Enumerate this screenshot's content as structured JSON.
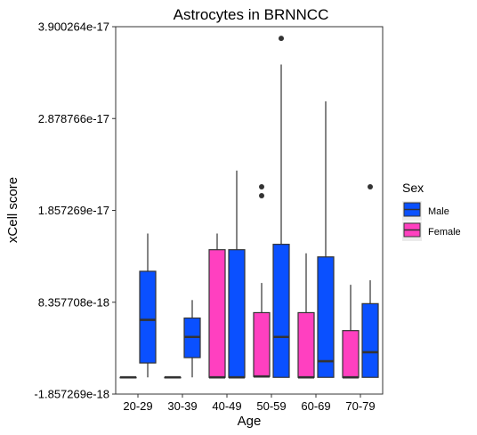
{
  "chart_data": {
    "type": "boxplot",
    "title": "Astrocytes in BRNNCC",
    "xlabel": "Age",
    "ylabel": "xCell score",
    "ylim": [
      -1.857269e-18,
      3.900264e-17
    ],
    "yticks": [
      -1.857269e-18,
      8.357708e-18,
      1.857269e-17,
      2.878766e-17,
      3.900264e-17
    ],
    "ytick_labels": [
      "-1.857269e-18",
      "8.357708e-18",
      "1.857269e-17",
      "2.878766e-17",
      "3.900264e-17"
    ],
    "categories": [
      "20-29",
      "30-39",
      "40-49",
      "50-59",
      "60-69",
      "70-79"
    ],
    "legend": {
      "title": "Sex",
      "position": "right"
    },
    "grid": false,
    "series": [
      {
        "name": "Female",
        "color": "#FF40C0",
        "boxes": [
          {
            "category": "20-29",
            "min": 0,
            "q1": 0,
            "median": 0,
            "q3": 0,
            "max": 0,
            "outliers": []
          },
          {
            "category": "30-39",
            "min": 0,
            "q1": 0,
            "median": 0,
            "q3": 0,
            "max": 0,
            "outliers": []
          },
          {
            "category": "40-49",
            "min": 0,
            "q1": 0,
            "median": 0,
            "q3": 1.42e-17,
            "max": 1.6e-17,
            "outliers": []
          },
          {
            "category": "50-59",
            "min": 0,
            "q1": 1e-19,
            "median": 1e-19,
            "q3": 7.2e-18,
            "max": 1.05e-17,
            "outliers": [
              2.02e-17,
              2.12e-17
            ]
          },
          {
            "category": "60-69",
            "min": 0,
            "q1": 0,
            "median": 0,
            "q3": 7.2e-18,
            "max": 1.38e-17,
            "outliers": []
          },
          {
            "category": "70-79",
            "min": 0,
            "q1": 0,
            "median": 0,
            "q3": 5.2e-18,
            "max": 1.03e-17,
            "outliers": []
          }
        ]
      },
      {
        "name": "Male",
        "color": "#0A50FF",
        "boxes": [
          {
            "category": "20-29",
            "min": 0,
            "q1": 1.6e-18,
            "median": 6.4e-18,
            "q3": 1.18e-17,
            "max": 1.6e-17,
            "outliers": []
          },
          {
            "category": "30-39",
            "min": 0,
            "q1": 2.2e-18,
            "median": 4.5e-18,
            "q3": 6.6e-18,
            "max": 8.6e-18,
            "outliers": []
          },
          {
            "category": "40-49",
            "min": 0,
            "q1": 0,
            "median": 0,
            "q3": 1.42e-17,
            "max": 2.3e-17,
            "outliers": []
          },
          {
            "category": "50-59",
            "min": 0,
            "q1": 0,
            "median": 4.5e-18,
            "q3": 1.48e-17,
            "max": 3.48e-17,
            "outliers": [
              3.77e-17
            ]
          },
          {
            "category": "60-69",
            "min": 0,
            "q1": 0,
            "median": 1.8e-18,
            "q3": 1.34e-17,
            "max": 3.07e-17,
            "outliers": []
          },
          {
            "category": "70-79",
            "min": 0,
            "q1": 0,
            "median": 2.8e-18,
            "q3": 8.2e-18,
            "max": 1.08e-17,
            "outliers": [
              2.12e-17
            ]
          }
        ]
      }
    ]
  }
}
